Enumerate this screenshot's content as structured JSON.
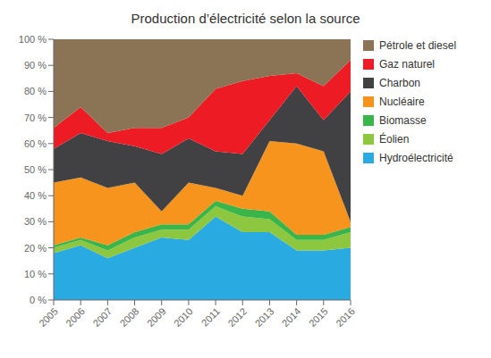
{
  "chart_data": {
    "type": "area",
    "title": "Production d’électricité selon la source",
    "stacked": true,
    "grid": false,
    "legend": "right",
    "x": [
      2005,
      2006,
      2007,
      2008,
      2009,
      2010,
      2011,
      2012,
      2013,
      2014,
      2015,
      2016
    ],
    "xlim": [
      2005,
      2016
    ],
    "xticks": [
      2005,
      2006,
      2007,
      2008,
      2009,
      2010,
      2011,
      2012,
      2013,
      2014,
      2015,
      2016
    ],
    "ylim": [
      0,
      100
    ],
    "yticks": [
      {
        "value": 0,
        "label": "0 %"
      },
      {
        "value": 10,
        "label": "10 %"
      },
      {
        "value": 20,
        "label": "20 %"
      },
      {
        "value": 30,
        "label": "30 %"
      },
      {
        "value": 40,
        "label": "40 %"
      },
      {
        "value": 50,
        "label": "50 %"
      },
      {
        "value": 60,
        "label": "60 %"
      },
      {
        "value": 70,
        "label": "70 %"
      },
      {
        "value": 80,
        "label": "80 %"
      },
      {
        "value": 90,
        "label": "90 %"
      },
      {
        "value": 100,
        "label": "100 %"
      }
    ],
    "series": [
      {
        "name": "Hydroélectricité",
        "color": "#29ABE2",
        "values": [
          18,
          21,
          16,
          20,
          24,
          23,
          32,
          26,
          26,
          19,
          19,
          20
        ]
      },
      {
        "name": "Éolien",
        "color": "#8DC63F",
        "values": [
          2,
          2,
          3,
          4,
          3,
          4,
          4,
          6,
          5,
          4,
          4,
          6
        ]
      },
      {
        "name": "Biomasse",
        "color": "#39B54A",
        "values": [
          1,
          1,
          2,
          2,
          2,
          2,
          2,
          3,
          3,
          2,
          2,
          2
        ]
      },
      {
        "name": "Nucléaire",
        "color": "#F7941D",
        "values": [
          24,
          23,
          22,
          19,
          5,
          16,
          5,
          5,
          27,
          35,
          32,
          2
        ]
      },
      {
        "name": "Charbon",
        "color": "#414042",
        "values": [
          13,
          17,
          18,
          14,
          22,
          17,
          14,
          16,
          8,
          22,
          12,
          50
        ]
      },
      {
        "name": "Gaz naturel",
        "color": "#ED1C24",
        "values": [
          8,
          10,
          3,
          7,
          10,
          8,
          24,
          28,
          17,
          5,
          13,
          12
        ]
      },
      {
        "name": "Pétrole et diesel",
        "color": "#8B7355",
        "values": [
          34,
          26,
          36,
          34,
          34,
          30,
          19,
          16,
          14,
          13,
          18,
          8
        ]
      }
    ]
  }
}
